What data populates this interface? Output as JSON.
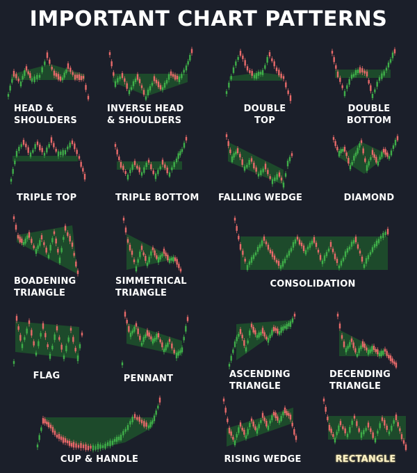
{
  "title": "IMPORTANT CHART PATTERNS",
  "colors": {
    "background": "#1b1f2a",
    "bullish_candle": "#3fae49",
    "bearish_candle": "#e86a6a",
    "zone_fill": "#1f5a2c",
    "text": "#ffffff",
    "highlight_text": "#fbf2c7"
  },
  "patterns": [
    {
      "id": "head-and-shoulders",
      "label": "HEAD &\nSHOULDERS"
    },
    {
      "id": "inverse-head-and-shoulders",
      "label": "INVERSE HEAD\n& SHOULDERS"
    },
    {
      "id": "double-top",
      "label": "DOUBLE\nTOP"
    },
    {
      "id": "double-bottom",
      "label": "DOUBLE\nBOTTOM"
    },
    {
      "id": "triple-top",
      "label": "TRIPLE TOP"
    },
    {
      "id": "triple-bottom",
      "label": "TRIPLE BOTTOM"
    },
    {
      "id": "falling-wedge",
      "label": "FALLING WEDGE"
    },
    {
      "id": "diamond",
      "label": "DIAMOND"
    },
    {
      "id": "broadening-triangle",
      "label": "BOADENING\nTRIANGLE"
    },
    {
      "id": "symmetrical-triangle",
      "label": "SIMMETRICAL\nTRIANGLE"
    },
    {
      "id": "consolidation",
      "label": "CONSOLIDATION"
    },
    {
      "id": "flag",
      "label": "FLAG"
    },
    {
      "id": "pennant",
      "label": "PENNANT"
    },
    {
      "id": "ascending-triangle",
      "label": "ASCENDING\nTRIANGLE"
    },
    {
      "id": "descending-triangle",
      "label": "DECENDING\nTRIANGLE"
    },
    {
      "id": "cup-and-handle",
      "label": "CUP & HANDLE"
    },
    {
      "id": "rising-wedge",
      "label": "RISING WEDGE"
    },
    {
      "id": "rectangle",
      "label": "RECTANGLE",
      "highlighted": true
    }
  ]
}
